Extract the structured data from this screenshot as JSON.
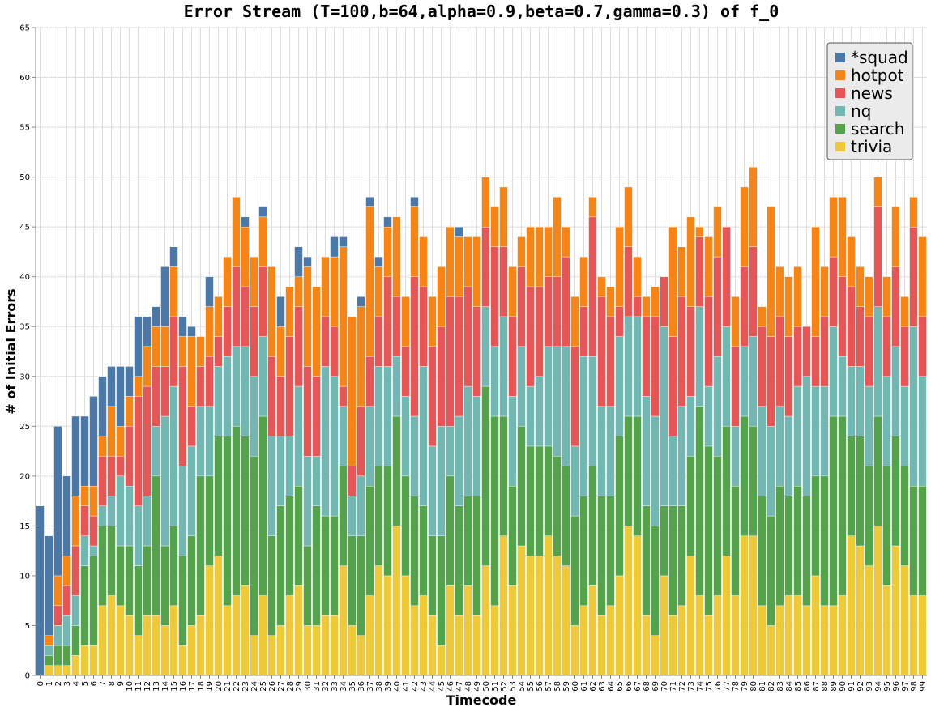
{
  "chart_data": {
    "type": "bar",
    "stacked": true,
    "title": "Error Stream (T=100,b=64,alpha=0.9,beta=0.7,gamma=0.3) of f_0",
    "xlabel": "Timecode",
    "ylabel": "# of Initial Errors",
    "ylim": [
      0,
      65
    ],
    "yticks": [
      0,
      5,
      10,
      15,
      20,
      25,
      30,
      35,
      40,
      45,
      50,
      55,
      60,
      65
    ],
    "grid": true,
    "legend_position": "top-right",
    "categories": [
      "0",
      "1",
      "2",
      "3",
      "4",
      "5",
      "6",
      "7",
      "8",
      "9",
      "10",
      "11",
      "12",
      "13",
      "14",
      "15",
      "16",
      "17",
      "18",
      "19",
      "20",
      "21",
      "22",
      "23",
      "24",
      "25",
      "26",
      "27",
      "28",
      "29",
      "30",
      "31",
      "32",
      "33",
      "34",
      "35",
      "36",
      "37",
      "38",
      "39",
      "40",
      "41",
      "42",
      "43",
      "44",
      "45",
      "46",
      "47",
      "48",
      "49",
      "50",
      "51",
      "52",
      "53",
      "54",
      "55",
      "56",
      "57",
      "58",
      "59",
      "60",
      "61",
      "62",
      "63",
      "64",
      "65",
      "66",
      "67",
      "68",
      "69",
      "70",
      "71",
      "72",
      "73",
      "74",
      "75",
      "76",
      "77",
      "78",
      "79",
      "80",
      "81",
      "82",
      "83",
      "84",
      "85",
      "86",
      "87",
      "88",
      "89",
      "90",
      "91",
      "92",
      "93",
      "94",
      "95",
      "96",
      "97",
      "98",
      "99"
    ],
    "series": [
      {
        "name": "trivia",
        "color": "#eeca3b",
        "values": [
          0,
          1,
          1,
          1,
          2,
          3,
          3,
          7,
          8,
          7,
          6,
          4,
          6,
          6,
          5,
          7,
          3,
          5,
          6,
          11,
          12,
          7,
          8,
          9,
          4,
          8,
          4,
          5,
          8,
          9,
          5,
          5,
          6,
          6,
          11,
          5,
          4,
          8,
          11,
          10,
          15,
          10,
          7,
          8,
          6,
          3,
          9,
          6,
          9,
          6,
          11,
          7,
          14,
          9,
          13,
          12,
          12,
          14,
          12,
          11,
          5,
          7,
          9,
          6,
          7,
          10,
          15,
          14,
          6,
          4,
          10,
          6,
          7,
          12,
          8,
          6,
          8,
          12,
          8,
          14,
          14,
          7,
          5,
          7,
          8,
          8,
          7,
          10,
          7,
          7,
          8,
          14,
          13,
          11,
          15,
          9,
          13,
          11,
          8,
          8
        ]
      },
      {
        "name": "search",
        "color": "#54a24b",
        "values": [
          0,
          1,
          2,
          2,
          3,
          8,
          9,
          8,
          7,
          6,
          7,
          7,
          7,
          14,
          8,
          8,
          9,
          9,
          14,
          9,
          12,
          17,
          17,
          15,
          18,
          18,
          10,
          12,
          10,
          10,
          8,
          12,
          10,
          10,
          10,
          9,
          10,
          11,
          10,
          11,
          11,
          10,
          11,
          9,
          8,
          11,
          11,
          11,
          9,
          12,
          18,
          19,
          12,
          10,
          12,
          11,
          11,
          9,
          10,
          10,
          11,
          11,
          12,
          12,
          11,
          14,
          11,
          12,
          11,
          11,
          7,
          11,
          10,
          10,
          19,
          17,
          14,
          13,
          11,
          12,
          11,
          11,
          11,
          12,
          10,
          11,
          11,
          10,
          13,
          19,
          18,
          10,
          11,
          10,
          11,
          12,
          11,
          10,
          11,
          11
        ]
      },
      {
        "name": "nq",
        "color": "#72b7b2",
        "values": [
          0,
          1,
          2,
          3,
          3,
          3,
          1,
          2,
          3,
          7,
          6,
          6,
          5,
          5,
          13,
          14,
          9,
          9,
          7,
          7,
          7,
          8,
          8,
          9,
          8,
          8,
          10,
          7,
          6,
          10,
          9,
          5,
          15,
          14,
          6,
          4,
          6,
          8,
          10,
          10,
          6,
          8,
          8,
          14,
          9,
          11,
          5,
          9,
          11,
          10,
          8,
          7,
          10,
          9,
          8,
          6,
          7,
          10,
          11,
          12,
          7,
          14,
          11,
          9,
          9,
          10,
          10,
          10,
          11,
          11,
          18,
          7,
          10,
          6,
          10,
          6,
          10,
          10,
          6,
          7,
          9,
          9,
          9,
          8,
          8,
          10,
          12,
          9,
          9,
          9,
          6,
          7,
          7,
          8,
          11,
          9,
          9,
          8,
          16,
          11
        ]
      },
      {
        "name": "news",
        "color": "#e45756",
        "values": [
          0,
          0,
          2,
          3,
          5,
          3,
          3,
          5,
          4,
          2,
          6,
          11,
          11,
          6,
          5,
          7,
          10,
          4,
          4,
          5,
          3,
          5,
          8,
          6,
          7,
          7,
          8,
          6,
          10,
          8,
          9,
          8,
          5,
          5,
          2,
          3,
          7,
          5,
          5,
          9,
          6,
          5,
          14,
          8,
          10,
          10,
          13,
          12,
          10,
          9,
          8,
          10,
          7,
          8,
          8,
          10,
          9,
          7,
          7,
          9,
          10,
          5,
          14,
          11,
          9,
          3,
          7,
          2,
          8,
          10,
          5,
          10,
          11,
          9,
          7,
          9,
          10,
          10,
          8,
          8,
          9,
          8,
          9,
          9,
          8,
          6,
          5,
          5,
          7,
          7,
          8,
          8,
          6,
          7,
          10,
          6,
          8,
          6,
          10,
          6
        ]
      },
      {
        "name": "hotpot",
        "color": "#f58518",
        "values": [
          0,
          1,
          3,
          3,
          5,
          2,
          3,
          2,
          5,
          3,
          3,
          2,
          4,
          4,
          4,
          5,
          3,
          7,
          3,
          5,
          4,
          5,
          7,
          6,
          5,
          5,
          9,
          5,
          5,
          3,
          10,
          9,
          6,
          7,
          14,
          15,
          10,
          15,
          5,
          5,
          8,
          5,
          7,
          5,
          5,
          6,
          7,
          6,
          5,
          7,
          5,
          4,
          6,
          5,
          3,
          6,
          6,
          5,
          8,
          3,
          5,
          5,
          2,
          2,
          3,
          8,
          6,
          4,
          2,
          3,
          0,
          11,
          5,
          9,
          1,
          6,
          5,
          0,
          5,
          8,
          8,
          2,
          13,
          5,
          6,
          6,
          0,
          11,
          5,
          6,
          8,
          5,
          4,
          4,
          3,
          4,
          6,
          3,
          3,
          8
        ]
      },
      {
        "name": "*squad",
        "color": "#4c78a8",
        "values": [
          17,
          10,
          15,
          8,
          8,
          7,
          9,
          6,
          4,
          6,
          3,
          6,
          3,
          2,
          6,
          2,
          2,
          1,
          0,
          3,
          0,
          0,
          0,
          1,
          0,
          1,
          0,
          3,
          0,
          3,
          1,
          0,
          0,
          2,
          1,
          0,
          1,
          1,
          1,
          1,
          0,
          0,
          1,
          0,
          0,
          0,
          0,
          1,
          0,
          0,
          0,
          0,
          0,
          0,
          0,
          0,
          0,
          0,
          0,
          0,
          0,
          0,
          0,
          0,
          0,
          0,
          0,
          0,
          0,
          0,
          0,
          0,
          0,
          0,
          0,
          0,
          0,
          0,
          0,
          0,
          0,
          0,
          0,
          0,
          0,
          0,
          0,
          0,
          0,
          0,
          0,
          0,
          0,
          0,
          0,
          0,
          0,
          0,
          0,
          0
        ]
      }
    ],
    "legend_order": [
      "*squad",
      "hotpot",
      "news",
      "nq",
      "search",
      "trivia"
    ]
  }
}
